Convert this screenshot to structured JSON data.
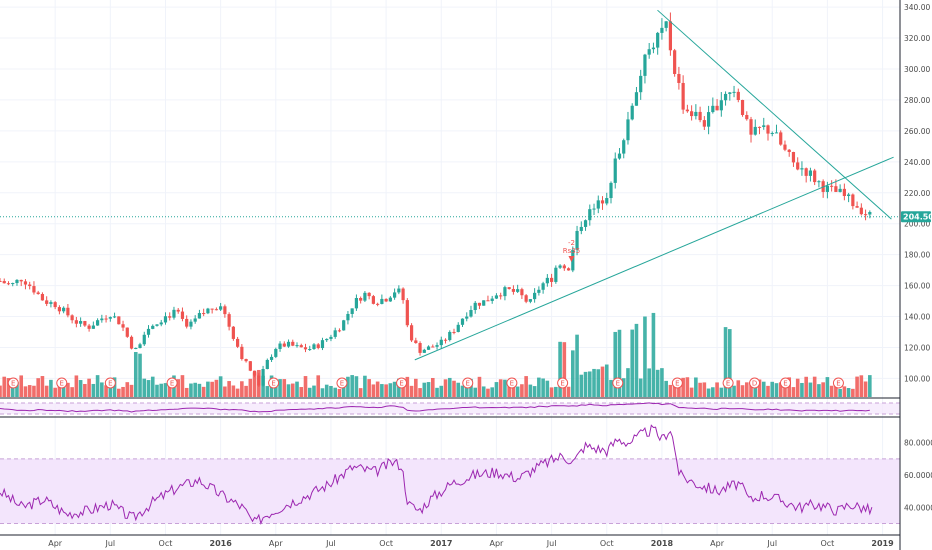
{
  "chart_data": {
    "type": "candlestick",
    "price_axis": {
      "range": [
        88,
        342
      ],
      "ticks": [
        100,
        120,
        140,
        160,
        180,
        200,
        220,
        240,
        260,
        280,
        300,
        320,
        340
      ],
      "tick_labels": [
        "100.00",
        "120.00",
        "140.00",
        "160.00",
        "180.00",
        "200.00",
        "220.00",
        "240.00",
        "260.00",
        "280.00",
        "300.00",
        "320.00",
        "340.00"
      ]
    },
    "last_price": {
      "value": 204.5,
      "label": "204.50",
      "color": "#26a69a"
    },
    "time_axis": {
      "ticks": [
        {
          "label": "Apr",
          "t": 2015.25,
          "bold": false
        },
        {
          "label": "Jul",
          "t": 2015.5,
          "bold": false
        },
        {
          "label": "Oct",
          "t": 2015.75,
          "bold": false
        },
        {
          "label": "2016",
          "t": 2016.0,
          "bold": true
        },
        {
          "label": "Apr",
          "t": 2016.25,
          "bold": false
        },
        {
          "label": "Jul",
          "t": 2016.5,
          "bold": false
        },
        {
          "label": "Oct",
          "t": 2016.75,
          "bold": false
        },
        {
          "label": "2017",
          "t": 2017.0,
          "bold": true
        },
        {
          "label": "Apr",
          "t": 2017.25,
          "bold": false
        },
        {
          "label": "Jul",
          "t": 2017.5,
          "bold": false
        },
        {
          "label": "Oct",
          "t": 2017.75,
          "bold": false
        },
        {
          "label": "2018",
          "t": 2018.0,
          "bold": true
        },
        {
          "label": "Apr",
          "t": 2018.25,
          "bold": false
        },
        {
          "label": "Jul",
          "t": 2018.5,
          "bold": false
        },
        {
          "label": "Oct",
          "t": 2018.75,
          "bold": false
        },
        {
          "label": "2019",
          "t": 2019.0,
          "bold": true
        }
      ]
    },
    "price_path": [
      [
        2015.0,
        163
      ],
      [
        2015.05,
        160
      ],
      [
        2015.1,
        165
      ],
      [
        2015.15,
        158
      ],
      [
        2015.2,
        150
      ],
      [
        2015.25,
        148
      ],
      [
        2015.3,
        142
      ],
      [
        2015.35,
        136
      ],
      [
        2015.4,
        133
      ],
      [
        2015.45,
        138
      ],
      [
        2015.5,
        142
      ],
      [
        2015.55,
        135
      ],
      [
        2015.6,
        120
      ],
      [
        2015.62,
        118
      ],
      [
        2015.65,
        130
      ],
      [
        2015.7,
        136
      ],
      [
        2015.75,
        140
      ],
      [
        2015.8,
        143
      ],
      [
        2015.85,
        132
      ],
      [
        2015.9,
        140
      ],
      [
        2015.95,
        145
      ],
      [
        2016.0,
        148
      ],
      [
        2016.05,
        130
      ],
      [
        2016.1,
        113
      ],
      [
        2016.15,
        102
      ],
      [
        2016.17,
        95
      ],
      [
        2016.2,
        108
      ],
      [
        2016.25,
        120
      ],
      [
        2016.3,
        122
      ],
      [
        2016.35,
        120
      ],
      [
        2016.4,
        119
      ],
      [
        2016.45,
        122
      ],
      [
        2016.5,
        128
      ],
      [
        2016.55,
        135
      ],
      [
        2016.6,
        148
      ],
      [
        2016.65,
        155
      ],
      [
        2016.7,
        150
      ],
      [
        2016.75,
        152
      ],
      [
        2016.8,
        158
      ],
      [
        2016.83,
        150
      ],
      [
        2016.85,
        130
      ],
      [
        2016.9,
        118
      ],
      [
        2016.95,
        120
      ],
      [
        2017.0,
        123
      ],
      [
        2017.05,
        130
      ],
      [
        2017.1,
        140
      ],
      [
        2017.15,
        148
      ],
      [
        2017.2,
        150
      ],
      [
        2017.25,
        155
      ],
      [
        2017.3,
        157
      ],
      [
        2017.35,
        155
      ],
      [
        2017.4,
        148
      ],
      [
        2017.45,
        160
      ],
      [
        2017.5,
        165
      ],
      [
        2017.52,
        172
      ],
      [
        2017.55,
        175
      ],
      [
        2017.58,
        168
      ],
      [
        2017.6,
        190
      ],
      [
        2017.65,
        205
      ],
      [
        2017.7,
        210
      ],
      [
        2017.75,
        220
      ],
      [
        2017.8,
        245
      ],
      [
        2017.85,
        270
      ],
      [
        2017.9,
        295
      ],
      [
        2017.95,
        315
      ],
      [
        2018.0,
        325
      ],
      [
        2018.02,
        328
      ],
      [
        2018.05,
        305
      ],
      [
        2018.1,
        275
      ],
      [
        2018.15,
        270
      ],
      [
        2018.2,
        265
      ],
      [
        2018.25,
        278
      ],
      [
        2018.3,
        288
      ],
      [
        2018.35,
        282
      ],
      [
        2018.4,
        255
      ],
      [
        2018.45,
        262
      ],
      [
        2018.5,
        260
      ],
      [
        2018.55,
        248
      ],
      [
        2018.6,
        238
      ],
      [
        2018.65,
        235
      ],
      [
        2018.7,
        228
      ],
      [
        2018.75,
        222
      ],
      [
        2018.8,
        220
      ],
      [
        2018.85,
        215
      ],
      [
        2018.9,
        210
      ],
      [
        2018.93,
        206
      ],
      [
        2018.95,
        204.5
      ]
    ],
    "events": [
      2015.06,
      2015.28,
      2015.5,
      2015.78,
      2016.24,
      2016.55,
      2016.82,
      2017.12,
      2017.32,
      2017.55,
      2017.8,
      2018.07,
      2018.3,
      2018.56,
      2018.8
    ],
    "events_d": [
      2018.42
    ],
    "event_label": "E",
    "event_d_label": "D",
    "split_marker": {
      "t": 2017.59,
      "price": 172,
      "line1": "-2",
      "line2": "Rs35"
    },
    "trendlines": [
      {
        "from": [
          2016.88,
          112
        ],
        "to": [
          2019.05,
          243
        ]
      },
      {
        "from": [
          2017.98,
          338
        ],
        "to": [
          2019.04,
          203
        ]
      }
    ],
    "rsi_axis": {
      "range": [
        26,
        94
      ],
      "ticks": [
        40,
        60,
        80
      ],
      "tick_labels": [
        "40.0000",
        "60.0000",
        "80.0000"
      ],
      "band": [
        30,
        70
      ]
    },
    "rsi_path": [
      [
        2015.0,
        50
      ],
      [
        2015.1,
        40
      ],
      [
        2015.2,
        45
      ],
      [
        2015.3,
        36
      ],
      [
        2015.4,
        38
      ],
      [
        2015.5,
        42
      ],
      [
        2015.6,
        33
      ],
      [
        2015.7,
        44
      ],
      [
        2015.8,
        52
      ],
      [
        2015.9,
        57
      ],
      [
        2016.0,
        48
      ],
      [
        2016.1,
        40
      ],
      [
        2016.15,
        30
      ],
      [
        2016.2,
        35
      ],
      [
        2016.3,
        42
      ],
      [
        2016.4,
        48
      ],
      [
        2016.5,
        55
      ],
      [
        2016.6,
        65
      ],
      [
        2016.7,
        62
      ],
      [
        2016.78,
        68
      ],
      [
        2016.82,
        66
      ],
      [
        2016.85,
        42
      ],
      [
        2016.9,
        38
      ],
      [
        2016.95,
        45
      ],
      [
        2017.05,
        55
      ],
      [
        2017.15,
        60
      ],
      [
        2017.25,
        62
      ],
      [
        2017.35,
        58
      ],
      [
        2017.45,
        66
      ],
      [
        2017.55,
        72
      ],
      [
        2017.6,
        68
      ],
      [
        2017.65,
        78
      ],
      [
        2017.75,
        75
      ],
      [
        2017.8,
        82
      ],
      [
        2017.85,
        80
      ],
      [
        2017.92,
        86
      ],
      [
        2017.96,
        88
      ],
      [
        2018.0,
        82
      ],
      [
        2018.04,
        89
      ],
      [
        2018.08,
        60
      ],
      [
        2018.15,
        55
      ],
      [
        2018.25,
        50
      ],
      [
        2018.35,
        55
      ],
      [
        2018.4,
        44
      ],
      [
        2018.45,
        48
      ],
      [
        2018.55,
        44
      ],
      [
        2018.62,
        40
      ],
      [
        2018.7,
        42
      ],
      [
        2018.8,
        38
      ],
      [
        2018.85,
        42
      ],
      [
        2018.9,
        40
      ],
      [
        2018.95,
        38
      ]
    ],
    "volume_spikes": {
      "2015.62": 40,
      "2016.16": 22,
      "2017.55": 54,
      "2017.6": 46,
      "2017.8": 48,
      "2017.87": 56,
      "2017.92": 70,
      "2017.96": 64,
      "2018.3": 66
    },
    "colors": {
      "up": "#26a69a",
      "down": "#ef5350",
      "rsi": "#9c27b0",
      "rsi_band": "#f3e5fc",
      "trend": "#26a69a",
      "grid": "#f0f3fa"
    }
  }
}
